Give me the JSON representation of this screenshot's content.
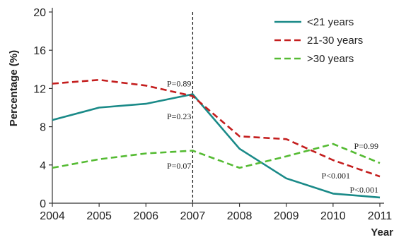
{
  "chart_data": {
    "type": "line",
    "x": [
      2004,
      2005,
      2006,
      2007,
      2008,
      2009,
      2010,
      2011
    ],
    "xlabel": "Year",
    "ylabel": "Percentage (%)",
    "ylim": [
      0,
      20
    ],
    "yticks": [
      0,
      4,
      8,
      12,
      16,
      20
    ],
    "grid": false,
    "legend_position": "top-right",
    "vline_x": 2007,
    "series": [
      {
        "name": "<21 years",
        "color": "#1a8a88",
        "dash": "solid",
        "values": [
          8.7,
          10.0,
          10.4,
          11.4,
          5.7,
          2.6,
          1.0,
          0.6
        ]
      },
      {
        "name": "21-30 years",
        "color": "#c41e1e",
        "dash": "dashed",
        "values": [
          12.5,
          12.9,
          12.3,
          11.2,
          7.0,
          6.7,
          4.5,
          2.8
        ]
      },
      {
        "name": ">30 years",
        "color": "#55bb33",
        "dash": "dashed",
        "values": [
          3.7,
          4.6,
          5.2,
          5.5,
          3.7,
          4.9,
          6.2,
          4.2
        ]
      }
    ],
    "annotations": [
      {
        "text": "P=0.89",
        "x": 2007,
        "y": 12.2,
        "anchor": "end"
      },
      {
        "text": "P=0.23",
        "x": 2007,
        "y": 8.8,
        "anchor": "end"
      },
      {
        "text": "P=0.07",
        "x": 2007,
        "y": 3.6,
        "anchor": "end"
      },
      {
        "text": "P=0.99",
        "x": 2011,
        "y": 5.7,
        "anchor": "end"
      },
      {
        "text": "P<0.001",
        "x": 2011,
        "y": 2.6,
        "anchor": "end",
        "dx": -40
      },
      {
        "text": "P<0.001",
        "x": 2011,
        "y": 1.1,
        "anchor": "end"
      }
    ]
  }
}
